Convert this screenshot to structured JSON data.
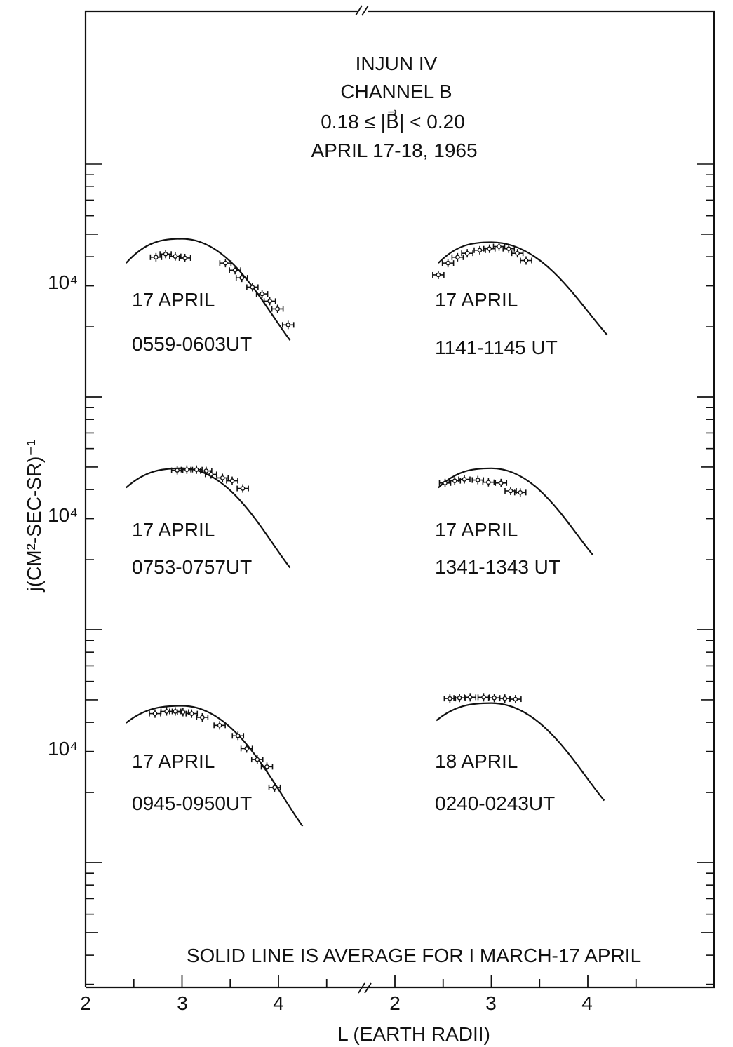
{
  "chart_data": {
    "type": "scatter",
    "title_lines": [
      "INJUN IV",
      "CHANNEL B",
      "0.18 ≤ |B⃗| < 0.20",
      "APRIL 17-18, 1965"
    ],
    "xlabel": "L (EARTH RADII)",
    "ylabel": "j(CM²-SEC-SR)⁻¹",
    "ytick_label": "10⁴",
    "y_scale": "log",
    "x_ticks_left": [
      "2",
      "3",
      "4"
    ],
    "x_ticks_right": [
      "2",
      "3",
      "4"
    ],
    "xlim_left": [
      2,
      4.6
    ],
    "xlim_right": [
      2,
      4.4
    ],
    "note": "SOLID LINE IS AVERAGE FOR I MARCH-17 APRIL",
    "panels": [
      {
        "id": "p1",
        "col": 0,
        "row": 0,
        "label_date": "17 APRIL",
        "label_time": "0559-0603UT",
        "curve": {
          "peak_L": 3.0,
          "peak_j": 15000,
          "start_L": 2.42,
          "start_j": 11800,
          "end_L": 4.12,
          "end_j": 5500
        },
        "points": [
          {
            "L": 2.73,
            "j": 12500
          },
          {
            "L": 2.83,
            "j": 12900
          },
          {
            "L": 2.93,
            "j": 12600
          },
          {
            "L": 3.03,
            "j": 12400
          },
          {
            "L": 3.45,
            "j": 11800
          },
          {
            "L": 3.55,
            "j": 11000
          },
          {
            "L": 3.62,
            "j": 10200
          },
          {
            "L": 3.73,
            "j": 9300
          },
          {
            "L": 3.83,
            "j": 8700
          },
          {
            "L": 3.91,
            "j": 8100
          },
          {
            "L": 3.99,
            "j": 7500
          },
          {
            "L": 4.1,
            "j": 6400
          }
        ]
      },
      {
        "id": "p2",
        "col": 1,
        "row": 0,
        "label_date": "17 APRIL",
        "label_time": "1141-1145 UT",
        "curve": {
          "peak_L": 3.0,
          "peak_j": 14500,
          "start_L": 2.45,
          "start_j": 11800,
          "end_L": 4.2,
          "end_j": 5800
        },
        "points": [
          {
            "L": 2.45,
            "j": 10500
          },
          {
            "L": 2.55,
            "j": 11800
          },
          {
            "L": 2.65,
            "j": 12500
          },
          {
            "L": 2.75,
            "j": 13000
          },
          {
            "L": 2.88,
            "j": 13400
          },
          {
            "L": 2.98,
            "j": 13600
          },
          {
            "L": 3.08,
            "j": 13900
          },
          {
            "L": 3.18,
            "j": 13600
          },
          {
            "L": 3.27,
            "j": 13000
          },
          {
            "L": 3.36,
            "j": 12100
          }
        ]
      },
      {
        "id": "p3",
        "col": 0,
        "row": 1,
        "label_date": "17 APRIL",
        "label_time": "0753-0757UT",
        "curve": {
          "peak_L": 3.0,
          "peak_j": 15500,
          "start_L": 2.42,
          "start_j": 12800,
          "end_L": 4.12,
          "end_j": 5800
        },
        "points": [
          {
            "L": 2.95,
            "j": 15200
          },
          {
            "L": 3.05,
            "j": 15300
          },
          {
            "L": 3.15,
            "j": 15300
          },
          {
            "L": 3.25,
            "j": 15100
          },
          {
            "L": 3.3,
            "j": 14600
          },
          {
            "L": 3.42,
            "j": 14100
          },
          {
            "L": 3.52,
            "j": 13700
          },
          {
            "L": 3.63,
            "j": 12700
          }
        ]
      },
      {
        "id": "p4",
        "col": 1,
        "row": 1,
        "label_date": "17 APRIL",
        "label_time": "1341-1343 UT",
        "curve": {
          "peak_L": 3.0,
          "peak_j": 15500,
          "start_L": 2.45,
          "start_j": 12800,
          "end_L": 4.05,
          "end_j": 6600
        },
        "points": [
          {
            "L": 2.52,
            "j": 13400
          },
          {
            "L": 2.62,
            "j": 13700
          },
          {
            "L": 2.72,
            "j": 13900
          },
          {
            "L": 2.86,
            "j": 13800
          },
          {
            "L": 2.97,
            "j": 13500
          },
          {
            "L": 3.1,
            "j": 13400
          },
          {
            "L": 3.2,
            "j": 12400
          },
          {
            "L": 3.3,
            "j": 12200
          }
        ]
      },
      {
        "id": "p5",
        "col": 0,
        "row": 2,
        "label_date": "17 APRIL",
        "label_time": "0945-0950UT",
        "curve": {
          "peak_L": 3.0,
          "peak_j": 14800,
          "start_L": 2.42,
          "start_j": 12500,
          "end_L": 4.25,
          "end_j": 4500
        },
        "points": [
          {
            "L": 2.72,
            "j": 13700
          },
          {
            "L": 2.84,
            "j": 14000
          },
          {
            "L": 2.93,
            "j": 14000
          },
          {
            "L": 3.01,
            "j": 13900
          },
          {
            "L": 3.1,
            "j": 13700
          },
          {
            "L": 3.21,
            "j": 13200
          },
          {
            "L": 3.39,
            "j": 12200
          },
          {
            "L": 3.58,
            "j": 11000
          },
          {
            "L": 3.67,
            "j": 9700
          },
          {
            "L": 3.78,
            "j": 8700
          },
          {
            "L": 3.88,
            "j": 8100
          },
          {
            "L": 3.96,
            "j": 6600
          }
        ]
      },
      {
        "id": "p6",
        "col": 1,
        "row": 2,
        "label_date": "18 APRIL",
        "label_time": "0240-0243UT",
        "curve": {
          "peak_L": 3.0,
          "peak_j": 15200,
          "start_L": 2.43,
          "start_j": 12800,
          "end_L": 4.17,
          "end_j": 5800
        },
        "points": [
          {
            "L": 2.57,
            "j": 15900
          },
          {
            "L": 2.67,
            "j": 16000
          },
          {
            "L": 2.78,
            "j": 16100
          },
          {
            "L": 2.92,
            "j": 16100
          },
          {
            "L": 3.03,
            "j": 16000
          },
          {
            "L": 3.14,
            "j": 15900
          },
          {
            "L": 3.25,
            "j": 15800
          }
        ]
      }
    ]
  }
}
